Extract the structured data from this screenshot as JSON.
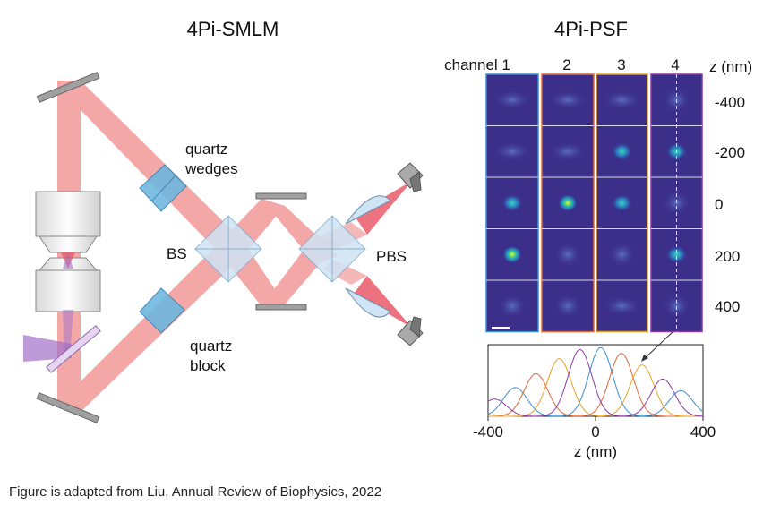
{
  "title_left": "4Pi-SMLM",
  "title_right": "4Pi-PSF",
  "labels": {
    "quartz_wedges_1": "quartz",
    "quartz_wedges_2": "wedges",
    "bs": "BS",
    "pbs": "PBS",
    "quartz_block_1": "quartz",
    "quartz_block_2": "block"
  },
  "psf": {
    "channel_headers": [
      "channel 1",
      "2",
      "3",
      "4"
    ],
    "z_header": "z (nm)",
    "z_values": [
      "-400",
      "-200",
      "0",
      "200",
      "400"
    ]
  },
  "colors": {
    "beam": "#f08a8a",
    "beam_dark": "#e85060",
    "laser": "#a070c8",
    "optic_blue": "#6fb8e0",
    "cube": "#cfe4f4",
    "mirror": "#a0a0a0",
    "psf_bg": "#3b2f8a",
    "channel_borders": [
      "#3a8ed0",
      "#e0663a",
      "#e8a020",
      "#8a3aa0"
    ]
  },
  "icons": [
    "mirror-icon",
    "objective-lens-icon",
    "dichroic-icon",
    "quartz-wedge-icon",
    "beam-splitter-icon",
    "pbs-icon",
    "lens-icon",
    "camera-icon",
    "scale-bar-icon"
  ],
  "chart_data": {
    "type": "line",
    "xlabel": "z (nm)",
    "xlim": [
      -400,
      400
    ],
    "x_ticks": [
      "-400",
      "0",
      "400"
    ],
    "grid": false,
    "series": [
      {
        "color": "#3a8ed0",
        "peaks": [
          -310,
          20,
          330
        ]
      },
      {
        "color": "#e0663a",
        "peaks": [
          -230,
          100
        ]
      },
      {
        "color": "#e8a020",
        "peaks": [
          -140,
          180
        ]
      },
      {
        "color": "#8a3aa0",
        "peaks": [
          -390,
          -60,
          260
        ]
      }
    ]
  },
  "caption": "Figure is adapted from Liu, Annual Review of Biophysics, 2022"
}
